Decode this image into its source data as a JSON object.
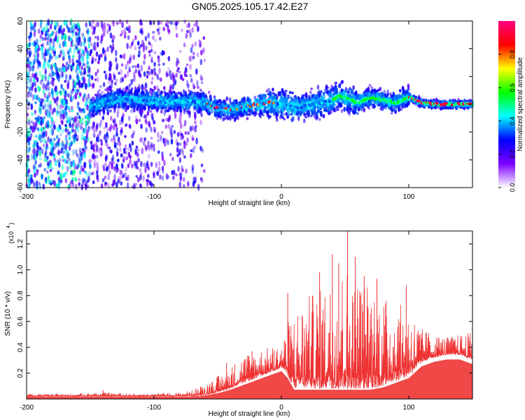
{
  "figure": {
    "title": "GN05.2025.105.17.42.E27"
  },
  "chart_data": [
    {
      "type": "heatmap",
      "name": "spectrogram",
      "xlabel": "Height of straight line (km)",
      "ylabel": "Frequency (Hz)",
      "xlim": [
        -200,
        150
      ],
      "ylim": [
        -60,
        60
      ],
      "xticks": [
        -200,
        -100,
        0,
        100
      ],
      "xtick_labels": [
        "-200",
        "-100",
        "0",
        "100"
      ],
      "yticks": [
        -60,
        -40,
        -20,
        0,
        20,
        40,
        60
      ],
      "ytick_labels": [
        "-60",
        "-40",
        "-20",
        "0",
        "20",
        "40",
        "60"
      ],
      "colorbar": {
        "label": "Normalized spectral amplitude",
        "range": [
          0.0,
          1.0
        ],
        "ticks": [
          0.0,
          0.2,
          0.4,
          0.6,
          0.8
        ],
        "tick_labels": [
          "0.0",
          "0.2",
          "0.4",
          "0.6",
          "0.8"
        ],
        "colormap": [
          "#ffffff",
          "#7d00ff",
          "#0000ff",
          "#00ffff",
          "#00ff00",
          "#ffff00",
          "#ff0000",
          "#ff0080"
        ]
      },
      "ridge": {
        "x": [
          -150,
          -130,
          -110,
          -90,
          -70,
          -60,
          -50,
          -40,
          -30,
          -20,
          -10,
          0,
          10,
          20,
          30,
          40,
          45,
          50,
          60,
          70,
          80,
          90,
          100,
          110,
          120,
          130,
          140,
          150
        ],
        "freq": [
          -2,
          4,
          3,
          2,
          2,
          1,
          -3,
          -4,
          -2,
          0,
          1,
          0,
          -2,
          -1,
          1,
          3,
          6,
          5,
          1,
          5,
          3,
          1,
          5,
          1,
          0,
          0,
          0,
          0
        ]
      }
    },
    {
      "type": "line",
      "name": "snr",
      "xlabel": "Height of straight line (km)",
      "ylabel": "SNR (10 * v/v)",
      "multiplier_label": "(x10",
      "multiplier_exp": "4",
      "xlim": [
        -200,
        150
      ],
      "ylim": [
        0.0,
        1.3
      ],
      "xticks": [
        -200,
        -100,
        0,
        100
      ],
      "xtick_labels": [
        "-200",
        "-100",
        "0",
        "100"
      ],
      "yticks": [
        0.2,
        0.4,
        0.6,
        0.8,
        1.0,
        1.2
      ],
      "ytick_labels": [
        "0.2",
        "0.4",
        "0.6",
        "0.8",
        "1.0",
        "1.2"
      ],
      "color": "#ee3333",
      "envelope": {
        "x": [
          -200,
          -170,
          -140,
          -110,
          -80,
          -70,
          -60,
          -50,
          -40,
          -30,
          -20,
          -10,
          0,
          5,
          10,
          20,
          30,
          40,
          50,
          60,
          70,
          80,
          90,
          100,
          110,
          120,
          130,
          140,
          150
        ],
        "base": [
          0.02,
          0.02,
          0.02,
          0.02,
          0.02,
          0.02,
          0.03,
          0.05,
          0.08,
          0.12,
          0.16,
          0.2,
          0.24,
          0.18,
          0.08,
          0.08,
          0.08,
          0.08,
          0.08,
          0.08,
          0.08,
          0.1,
          0.14,
          0.18,
          0.28,
          0.32,
          0.34,
          0.34,
          0.3
        ],
        "top": [
          0.04,
          0.04,
          0.05,
          0.04,
          0.05,
          0.07,
          0.12,
          0.18,
          0.25,
          0.35,
          0.38,
          0.4,
          0.42,
          0.6,
          0.7,
          0.8,
          0.85,
          0.95,
          1.05,
          0.98,
          0.9,
          0.8,
          0.75,
          0.7,
          0.55,
          0.5,
          0.48,
          0.5,
          0.52
        ]
      },
      "spikes": [
        {
          "x": 5,
          "y": 0.82
        },
        {
          "x": 30,
          "y": 0.98
        },
        {
          "x": 40,
          "y": 1.12
        },
        {
          "x": 45,
          "y": 1.05
        },
        {
          "x": 52,
          "y": 1.3
        },
        {
          "x": 58,
          "y": 1.1
        },
        {
          "x": 65,
          "y": 0.95
        },
        {
          "x": 75,
          "y": 0.93
        },
        {
          "x": 98,
          "y": 0.88
        },
        {
          "x": -140,
          "y": 0.07
        },
        {
          "x": -43,
          "y": 0.28
        },
        {
          "x": -23,
          "y": 0.37
        }
      ]
    }
  ]
}
